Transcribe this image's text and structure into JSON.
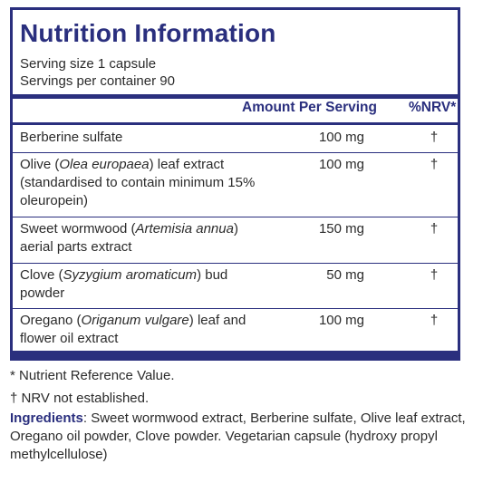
{
  "panel": {
    "title": "Nutrition Information",
    "serving_size": "Serving size  1 capsule",
    "servings_per_container": "Servings per container  90",
    "header_amount": "Amount Per Serving",
    "header_nrv": "%NRV*",
    "rows": [
      {
        "name_parts": [
          "Berberine sulfate"
        ],
        "amount": "100 mg",
        "nrv": "†"
      },
      {
        "name_parts": [
          "Olive (",
          "Olea europaea",
          ") leaf extract (standardised to contain minimum 15% oleuropein)"
        ],
        "amount": "100 mg",
        "nrv": "†"
      },
      {
        "name_parts": [
          "Sweet wormwood (",
          "Artemisia annua",
          ") aerial parts extract"
        ],
        "amount": "150 mg",
        "nrv": "†"
      },
      {
        "name_parts": [
          "Clove (",
          "Syzygium aromaticum",
          ") bud powder"
        ],
        "amount": "50 mg",
        "nrv": "†"
      },
      {
        "name_parts": [
          "Oregano (",
          "Origanum vulgare",
          ") leaf and flower oil extract"
        ],
        "amount": "100 mg",
        "nrv": "†"
      }
    ]
  },
  "footnotes": {
    "nrv_note": "* Nutrient Reference Value.",
    "nrv_not_established": "† NRV not established."
  },
  "ingredients": {
    "label": "Ingredients",
    "text": ": Sweet wormwood extract, Berberine sulfate, Olive leaf extract, Oregano oil powder, Clove powder. Vegetarian capsule (hydroxy propyl methylcellulose)"
  },
  "colors": {
    "accent": "#2a2f7e",
    "text": "#2b2b2b"
  }
}
